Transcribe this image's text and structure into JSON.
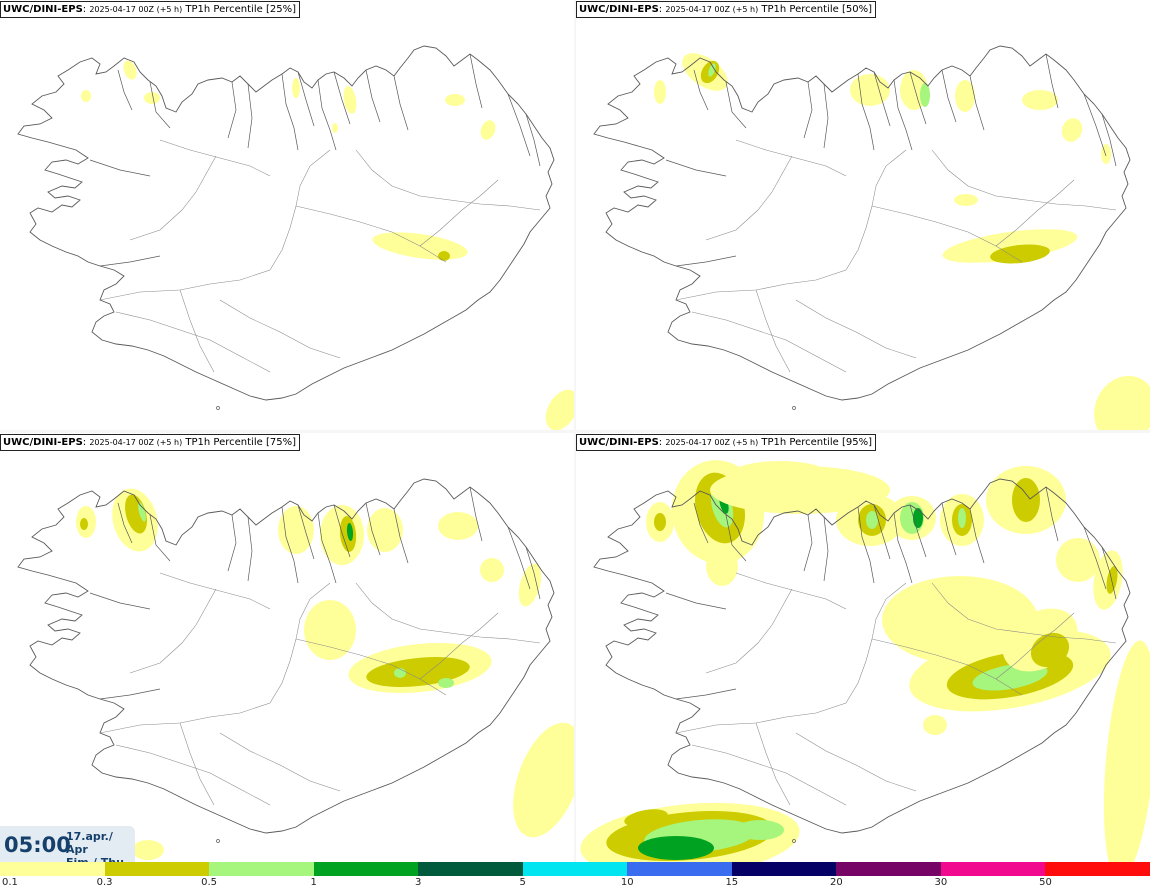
{
  "panels": [
    {
      "source": "UWC/DINI-EPS",
      "run": "2025-04-17 00Z (+5 h)",
      "product": "TP1h Percentile [25%]"
    },
    {
      "source": "UWC/DINI-EPS",
      "run": "2025-04-17 00Z (+5 h)",
      "product": "TP1h Percentile [50%]"
    },
    {
      "source": "UWC/DINI-EPS",
      "run": "2025-04-17 00Z (+5 h)",
      "product": "TP1h Percentile [75%]"
    },
    {
      "source": "UWC/DINI-EPS",
      "run": "2025-04-17 00Z (+5 h)",
      "product": "TP1h Percentile [95%]"
    }
  ],
  "valid_time": {
    "clock": "05:00",
    "date_line1": "17.apr./ Apr",
    "date_line2": "Fim./ Thu"
  },
  "legend": {
    "colors": [
      "#ffff99",
      "#cccc00",
      "#a6f57c",
      "#00a321",
      "#005a3c",
      "#00e5f0",
      "#3a6cf0",
      "#050066",
      "#750466",
      "#f20a8e",
      "#ff0d0d"
    ],
    "ticks": [
      "0.1",
      "0.3",
      "0.5",
      "1",
      "3",
      "5",
      "10",
      "15",
      "20",
      "30",
      "50"
    ]
  },
  "map_colors": {
    "coast": "#5a5a5a",
    "light": "#ffff99",
    "mid": "#cccc00",
    "green": "#a6f57c",
    "dark": "#00a321",
    "deep": "#005a3c"
  }
}
